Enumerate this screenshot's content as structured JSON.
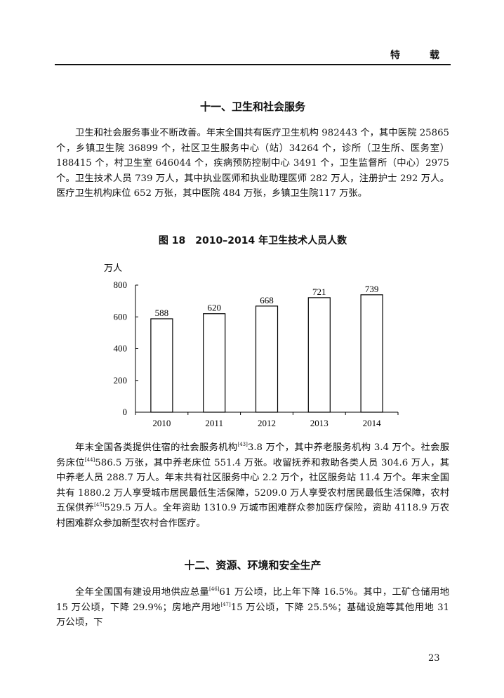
{
  "header": {
    "title": "特　载"
  },
  "section11": {
    "heading": "十一、卫生和社会服务",
    "para1": "卫生和社会服务事业不断改善。年末全国共有医疗卫生机构 982443 个，其中医院 25865 个，乡镇卫生院 36899 个，社区卫生服务中心（站）34264 个，诊所（卫生所、医务室）188415 个，村卫生室 646044 个，疾病预防控制中心 3491 个，卫生监督所（中心）2975 个。卫生技术人员 739 万人，其中执业医师和执业助理医师 282 万人，注册护士 292 万人。医疗卫生机构床位 652 万张，其中医院 484 万张，乡镇卫生院117 万张。",
    "para2": {
      "t1": "年末全国各类提供住宿的社会服务机构",
      "s1": "[43]",
      "t2": "3.8 万个，其中养老服务机构 3.4 万个。社会服务床位",
      "s2": "[44]",
      "t3": "586.5 万张，其中养老床位 551.4 万张。收留抚养和救助各类人员 304.6 万人，其中养老人员 288.7 万人。年末共有社区服务中心 2.2 万个，社区服务站 11.4 万个。年末全国共有 1880.2 万人享受城市居民最低生活保障，5209.0 万人享受农村居民最低生活保障，农村五保供养",
      "s3": "[45]",
      "t4": "529.5 万人。全年资助 1310.9 万城市困难群众参加医疗保险，资助 4118.9 万农村困难群众参加新型农村合作医疗。"
    }
  },
  "figure": {
    "title": "图 18　2010–2014 年卫生技术人员人数"
  },
  "chart_data": {
    "type": "bar",
    "title": "图 18　2010–2014 年卫生技术人员人数",
    "ylabel": "万人",
    "xlabel": "",
    "categories": [
      "2010",
      "2011",
      "2012",
      "2013",
      "2014"
    ],
    "values": [
      588,
      620,
      668,
      721,
      739
    ],
    "ylim": [
      0,
      800
    ],
    "yticks": [
      "0",
      "200",
      "400",
      "600",
      "800"
    ],
    "grid": false,
    "bar_fill": "#ffffff",
    "bar_stroke": "#000000"
  },
  "section12": {
    "heading": "十二、资源、环境和安全生产",
    "para1": {
      "t1": "全年全国国有建设用地供应总量",
      "s1": "[46]",
      "t2": "61 万公顷，比上年下降 16.5%。其中，工矿仓储用地 15 万公顷，下降 29.9%；房地产用地",
      "s2": "[47]",
      "t3": "15 万公顷，下降 25.5%；基础设施等其他用地 31 万公顷，下"
    }
  },
  "page_number": "23"
}
